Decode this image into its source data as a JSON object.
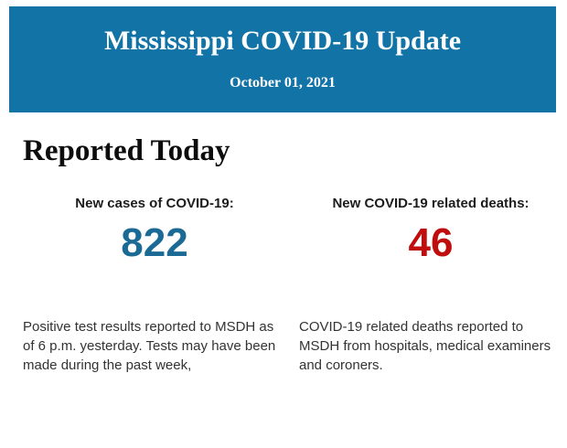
{
  "banner": {
    "title": "Mississippi COVID-19 Update",
    "date": "October 01, 2021",
    "background_color": "#1273a7",
    "text_color": "#ffffff"
  },
  "section": {
    "title": "Reported Today"
  },
  "stats": [
    {
      "label": "New cases of COVID-19:",
      "value": "822",
      "value_color": "#1b6a96",
      "description": "Positive test results reported to MSDH as of 6 p.m. yesterday. Tests may have been made during the past week,"
    },
    {
      "label": "New COVID-19 related deaths:",
      "value": "46",
      "value_color": "#c00d0d",
      "description": "COVID-19 related deaths reported to MSDH from hospitals, medical examiners and coroners."
    }
  ]
}
